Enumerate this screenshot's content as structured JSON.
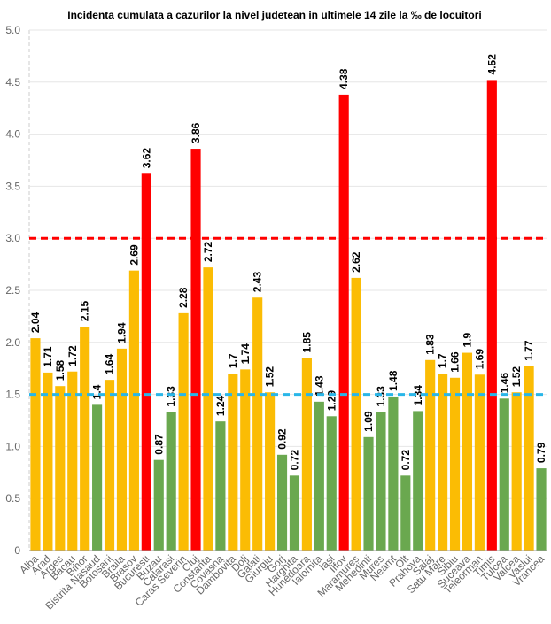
{
  "chart_data": {
    "type": "bar",
    "title": "Incidenta cumulata a cazurilor la nivel judetean in ultimele 14 zile la ‰ de locuitori",
    "categories": [
      "Alba",
      "Arad",
      "Arges",
      "Bacau",
      "Bihor",
      "Bistrita Nasaud",
      "Botosani",
      "Braila",
      "Brasov",
      "Bucuresti",
      "Buzau",
      "Calarasi",
      "Caras Severin",
      "Cluj",
      "Constanta",
      "Covasna",
      "Dambovita",
      "Dolj",
      "Galati",
      "Giurgiu",
      "Gorj",
      "Harghita",
      "Hunedoara",
      "Ialomita",
      "Iasi",
      "Ilfov",
      "Maramures",
      "Mehedinti",
      "Mures",
      "Neamt",
      "Olt",
      "Prahova",
      "Salaj",
      "Satu Mare",
      "Sibiu",
      "Suceava",
      "Teleorman",
      "Timis",
      "Tulcea",
      "Valcea",
      "Vaslui",
      "Vrancea"
    ],
    "values": [
      2.04,
      1.71,
      1.58,
      1.72,
      2.15,
      1.4,
      1.64,
      1.94,
      2.69,
      3.62,
      0.87,
      1.33,
      2.28,
      3.86,
      2.72,
      1.24,
      1.7,
      1.74,
      2.43,
      1.52,
      0.92,
      0.72,
      1.85,
      1.43,
      1.29,
      4.38,
      2.62,
      1.09,
      1.33,
      1.48,
      0.72,
      1.34,
      1.83,
      1.7,
      1.66,
      1.9,
      1.69,
      4.52,
      1.46,
      1.52,
      1.77,
      0.79
    ],
    "colors": [
      "#fbbc04",
      "#fbbc04",
      "#fbbc04",
      "#fbbc04",
      "#fbbc04",
      "#6aa84f",
      "#fbbc04",
      "#fbbc04",
      "#fbbc04",
      "#ff0000",
      "#6aa84f",
      "#6aa84f",
      "#fbbc04",
      "#ff0000",
      "#fbbc04",
      "#6aa84f",
      "#fbbc04",
      "#fbbc04",
      "#fbbc04",
      "#fbbc04",
      "#6aa84f",
      "#6aa84f",
      "#fbbc04",
      "#6aa84f",
      "#6aa84f",
      "#ff0000",
      "#fbbc04",
      "#6aa84f",
      "#6aa84f",
      "#6aa84f",
      "#6aa84f",
      "#6aa84f",
      "#fbbc04",
      "#fbbc04",
      "#fbbc04",
      "#fbbc04",
      "#fbbc04",
      "#ff0000",
      "#6aa84f",
      "#fbbc04",
      "#fbbc04",
      "#6aa84f"
    ],
    "ylim": [
      0,
      5
    ],
    "yticks": [
      0,
      {
        "value": 0.5,
        "label": "0.5"
      },
      {
        "value": 1,
        "label": "1.0"
      },
      {
        "value": 1.5,
        "label": "1.5"
      },
      {
        "value": 2,
        "label": "2.0"
      },
      {
        "value": 2.5,
        "label": "2.5"
      },
      {
        "value": 3,
        "label": "3.0"
      },
      {
        "value": 3.5,
        "label": "3.5"
      },
      {
        "value": 4,
        "label": "4.0"
      },
      {
        "value": 4.5,
        "label": "4.5"
      },
      {
        "value": 5,
        "label": "5.0"
      }
    ],
    "grid": true,
    "reference_lines": [
      {
        "value": 3,
        "color": "#ff0000"
      },
      {
        "value": 1.5,
        "color": "#29b6e8"
      }
    ]
  }
}
